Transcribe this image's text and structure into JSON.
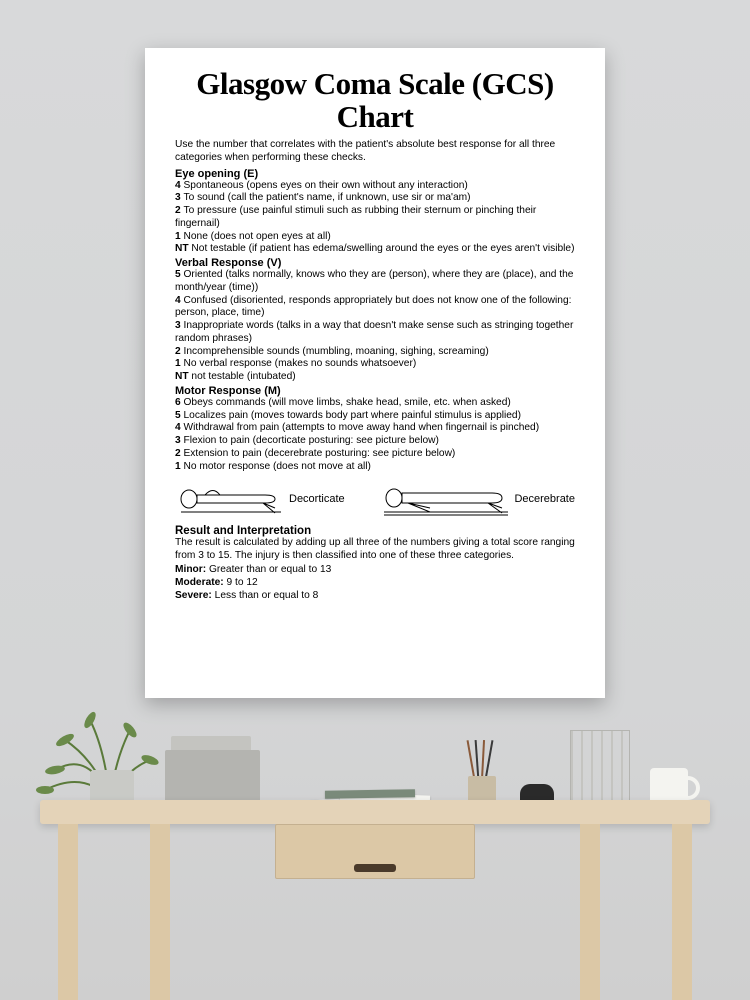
{
  "title": "Glasgow Coma Scale (GCS) Chart",
  "intro": "Use the number that correlates with the patient's absolute best response for all three categories when performing these checks.",
  "sections": {
    "eye": {
      "heading": "Eye opening (E)",
      "items": [
        {
          "score": "4",
          "text": "Spontaneous (opens eyes on their own without any interaction)"
        },
        {
          "score": "3",
          "text": "To sound (call the patient's name, if unknown, use sir or ma'am)"
        },
        {
          "score": "2",
          "text": "To pressure (use painful stimuli such as rubbing their sternum or pinching their fingernail)"
        },
        {
          "score": "1",
          "text": "None (does not open eyes at all)"
        },
        {
          "score": "NT",
          "text": "Not testable (if patient has edema/swelling around the eyes or the eyes aren't visible)"
        }
      ]
    },
    "verbal": {
      "heading": "Verbal Response (V)",
      "items": [
        {
          "score": "5",
          "text": "Oriented (talks normally, knows who they are (person), where they are (place), and the month/year (time))"
        },
        {
          "score": "4",
          "text": "Confused (disoriented, responds appropriately but does not know one of the following: person, place, time)"
        },
        {
          "score": "3",
          "text": "Inappropriate words (talks in a way that doesn't make sense such as stringing together random phrases)"
        },
        {
          "score": "2",
          "text": "Incomprehensible sounds (mumbling, moaning, sighing, screaming)"
        },
        {
          "score": "1",
          "text": "No verbal response (makes no sounds whatsoever)"
        },
        {
          "score": "NT",
          "text": "not testable (intubated)"
        }
      ]
    },
    "motor": {
      "heading": "Motor Response (M)",
      "items": [
        {
          "score": "6",
          "text": "Obeys commands (will move limbs, shake head, smile, etc. when asked)"
        },
        {
          "score": "5",
          "text": "Localizes pain (moves towards body part where painful stimulus is applied)"
        },
        {
          "score": "4",
          "text": "Withdrawal from pain (attempts to move away hand when fingernail is pinched)"
        },
        {
          "score": "3",
          "text": "Flexion to pain (decorticate posturing: see picture below)"
        },
        {
          "score": "2",
          "text": "Extension to pain (decerebrate posturing: see picture below)"
        },
        {
          "score": "1",
          "text": "No motor response (does not move at all)"
        }
      ]
    }
  },
  "figures": {
    "decorticate": "Decorticate",
    "decerebrate": "Decerebrate"
  },
  "result": {
    "heading": "Result and Interpretation",
    "text": "The result is calculated by adding up all three of the numbers giving a total score ranging from 3 to 15. The injury is then classified into one of these three categories.",
    "classes": [
      {
        "label": "Minor:",
        "range": "Greater than or equal to 13"
      },
      {
        "label": "Moderate:",
        "range": "9 to 12"
      },
      {
        "label": "Severe:",
        "range": "Less than or equal to 8"
      }
    ]
  },
  "colors": {
    "background_wall": "#d6d7d8",
    "poster_bg": "#ffffff",
    "text": "#000000",
    "wood": "#e0cda9",
    "plant_green": "#6a8a4a"
  }
}
